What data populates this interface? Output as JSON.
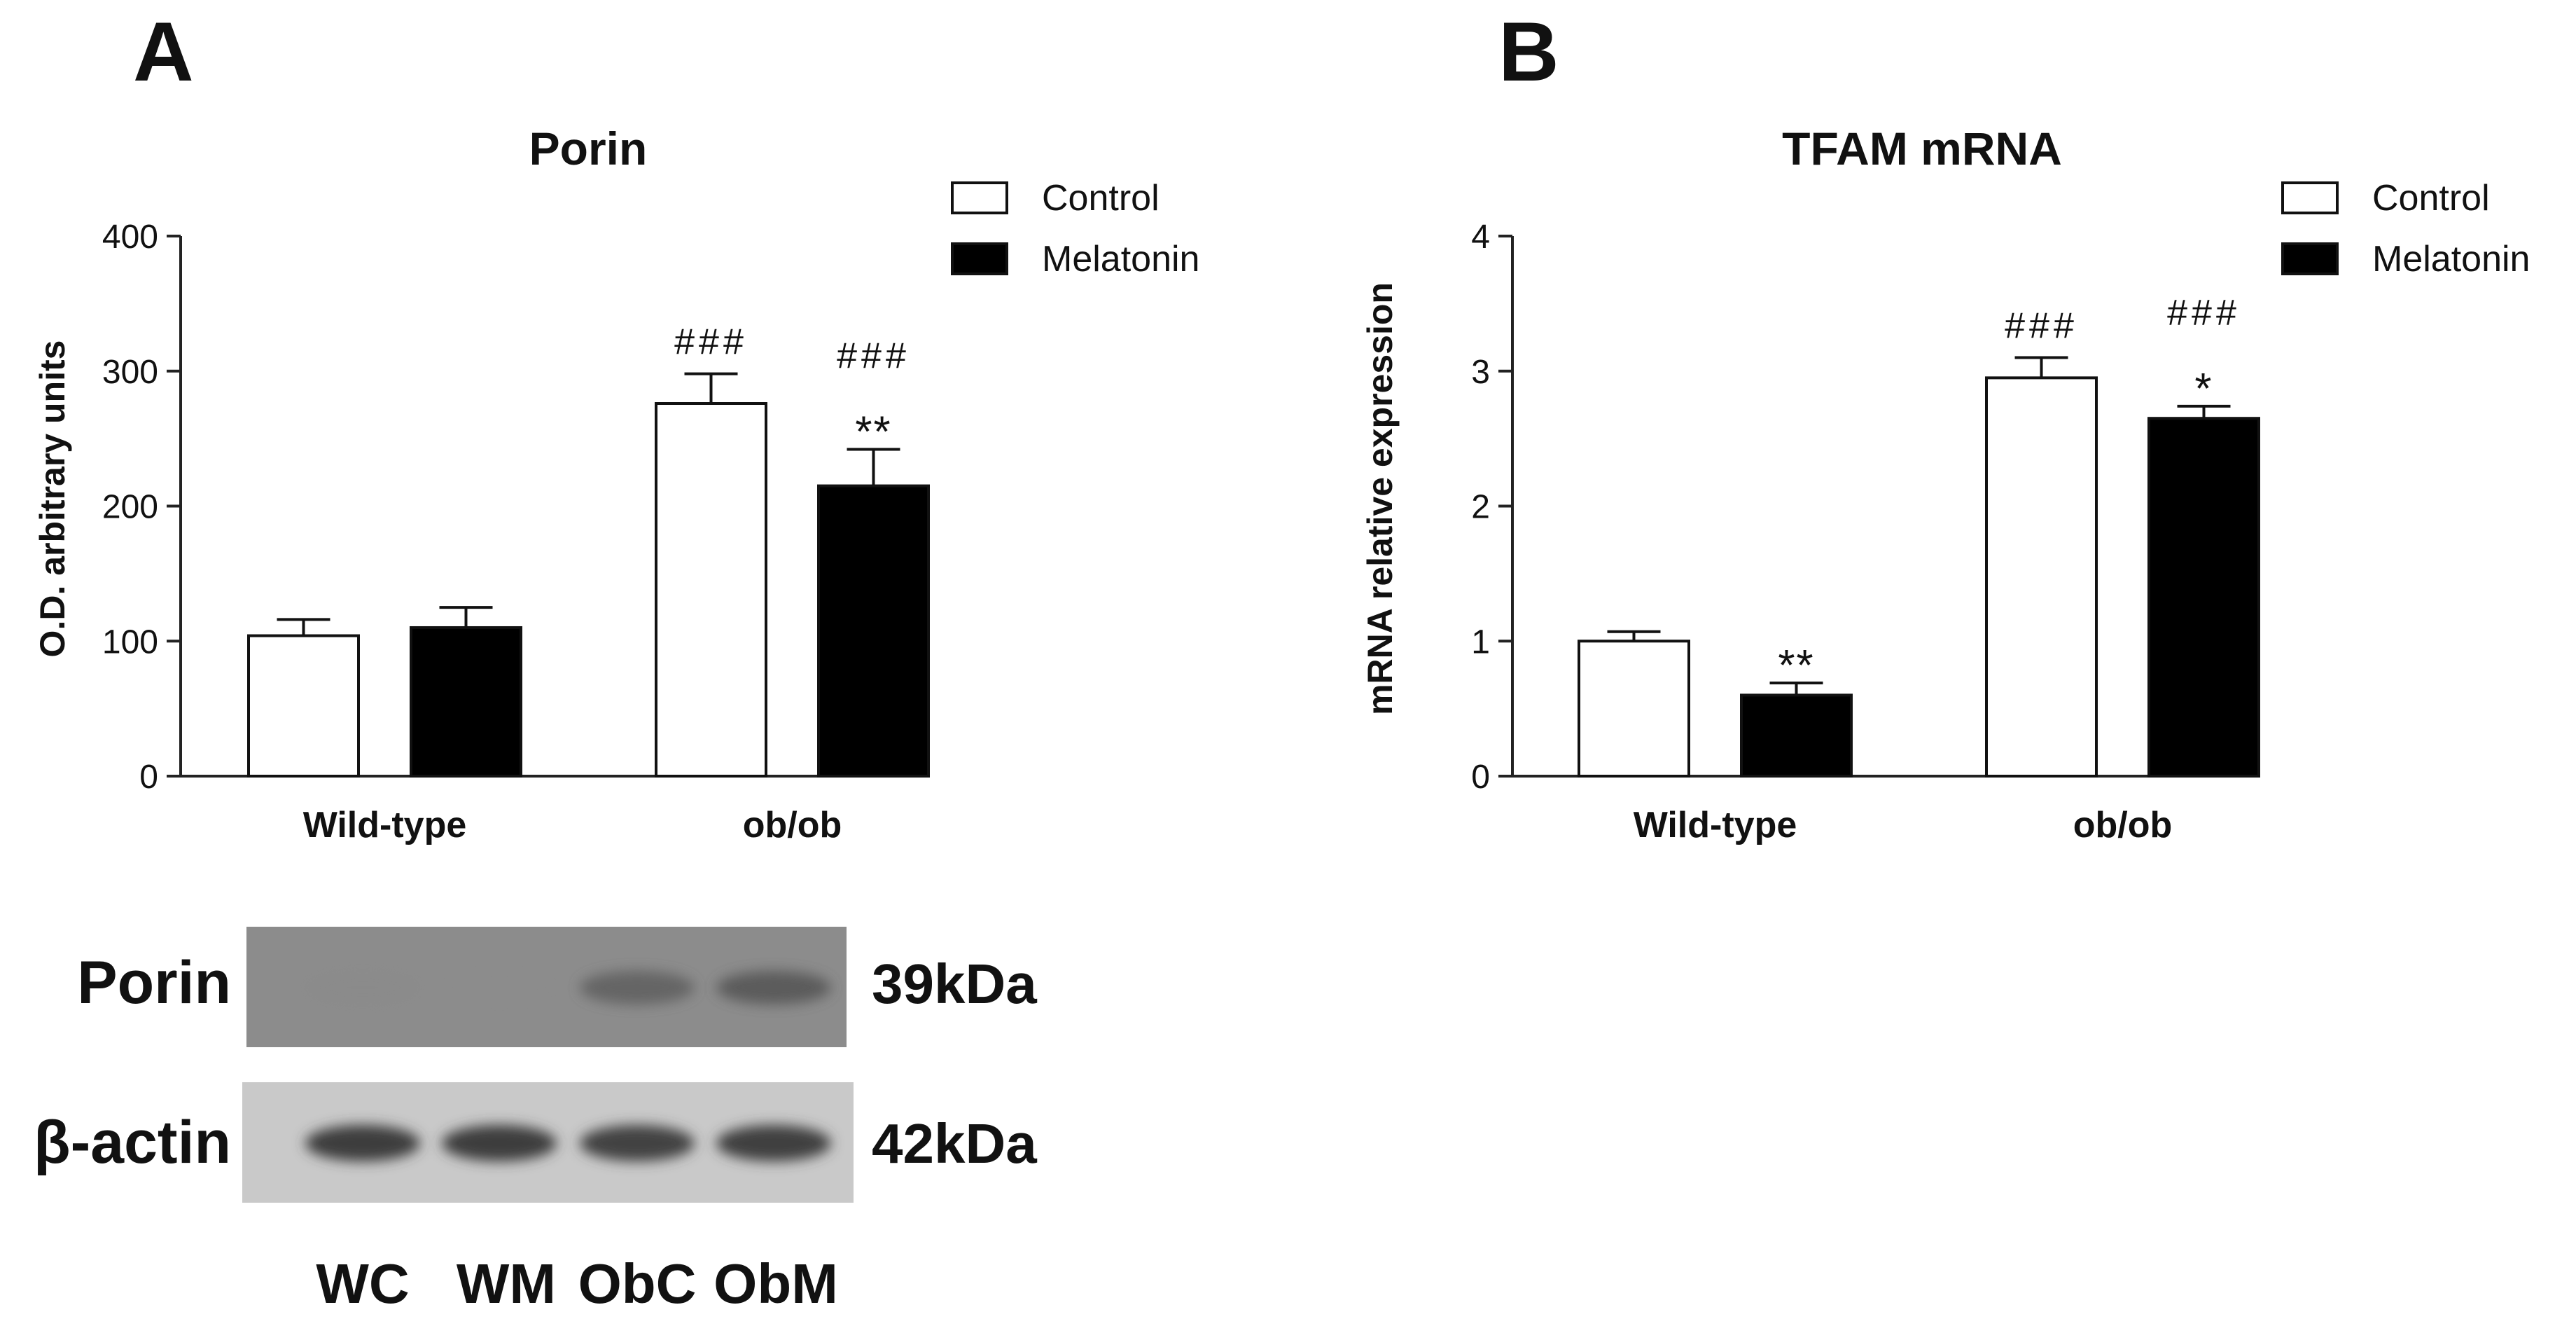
{
  "chart_data": [
    {
      "panel_label": "A",
      "type": "bar",
      "title": "Porin",
      "ylabel": "O.D. arbitrary units",
      "xlabel": "",
      "categories": [
        "Wild-type",
        "ob/ob"
      ],
      "series": [
        {
          "name": "Control",
          "color": "#ffffff",
          "values": [
            104,
            276
          ],
          "errors": [
            12,
            22
          ]
        },
        {
          "name": "Melatonin",
          "color": "#000000",
          "values": [
            110,
            215
          ],
          "errors": [
            15,
            27
          ]
        }
      ],
      "annotations": [
        [
          "",
          ""
        ],
        [
          "###",
          "###\n**"
        ]
      ],
      "ylim": [
        0,
        400
      ],
      "yticks": [
        0,
        100,
        200,
        300,
        400
      ],
      "grid": false,
      "legend": "top-right"
    },
    {
      "panel_label": "B",
      "type": "bar",
      "title": "TFAM mRNA",
      "ylabel": "mRNA relative expression",
      "xlabel": "",
      "categories": [
        "Wild-type",
        "ob/ob"
      ],
      "series": [
        {
          "name": "Control",
          "color": "#ffffff",
          "values": [
            1.0,
            2.95
          ],
          "errors": [
            0.07,
            0.15
          ]
        },
        {
          "name": "Melatonin",
          "color": "#000000",
          "values": [
            0.6,
            2.65
          ],
          "errors": [
            0.09,
            0.09
          ]
        }
      ],
      "annotations": [
        [
          "",
          "**"
        ],
        [
          "###",
          "###\n*"
        ]
      ],
      "ylim": [
        0,
        4
      ],
      "yticks": [
        0,
        1,
        2,
        3,
        4
      ],
      "grid": false,
      "legend": "top-right"
    }
  ],
  "blot": {
    "rows": [
      {
        "label": "Porin",
        "mw": "39kDa",
        "band_intensity": [
          0.12,
          0.1,
          0.55,
          0.62
        ]
      },
      {
        "label": "β-actin",
        "mw": "42kDa",
        "band_intensity": [
          0.85,
          0.85,
          0.8,
          0.82
        ]
      }
    ],
    "lanes": [
      "WC",
      "WM",
      "ObC",
      "ObM"
    ]
  }
}
